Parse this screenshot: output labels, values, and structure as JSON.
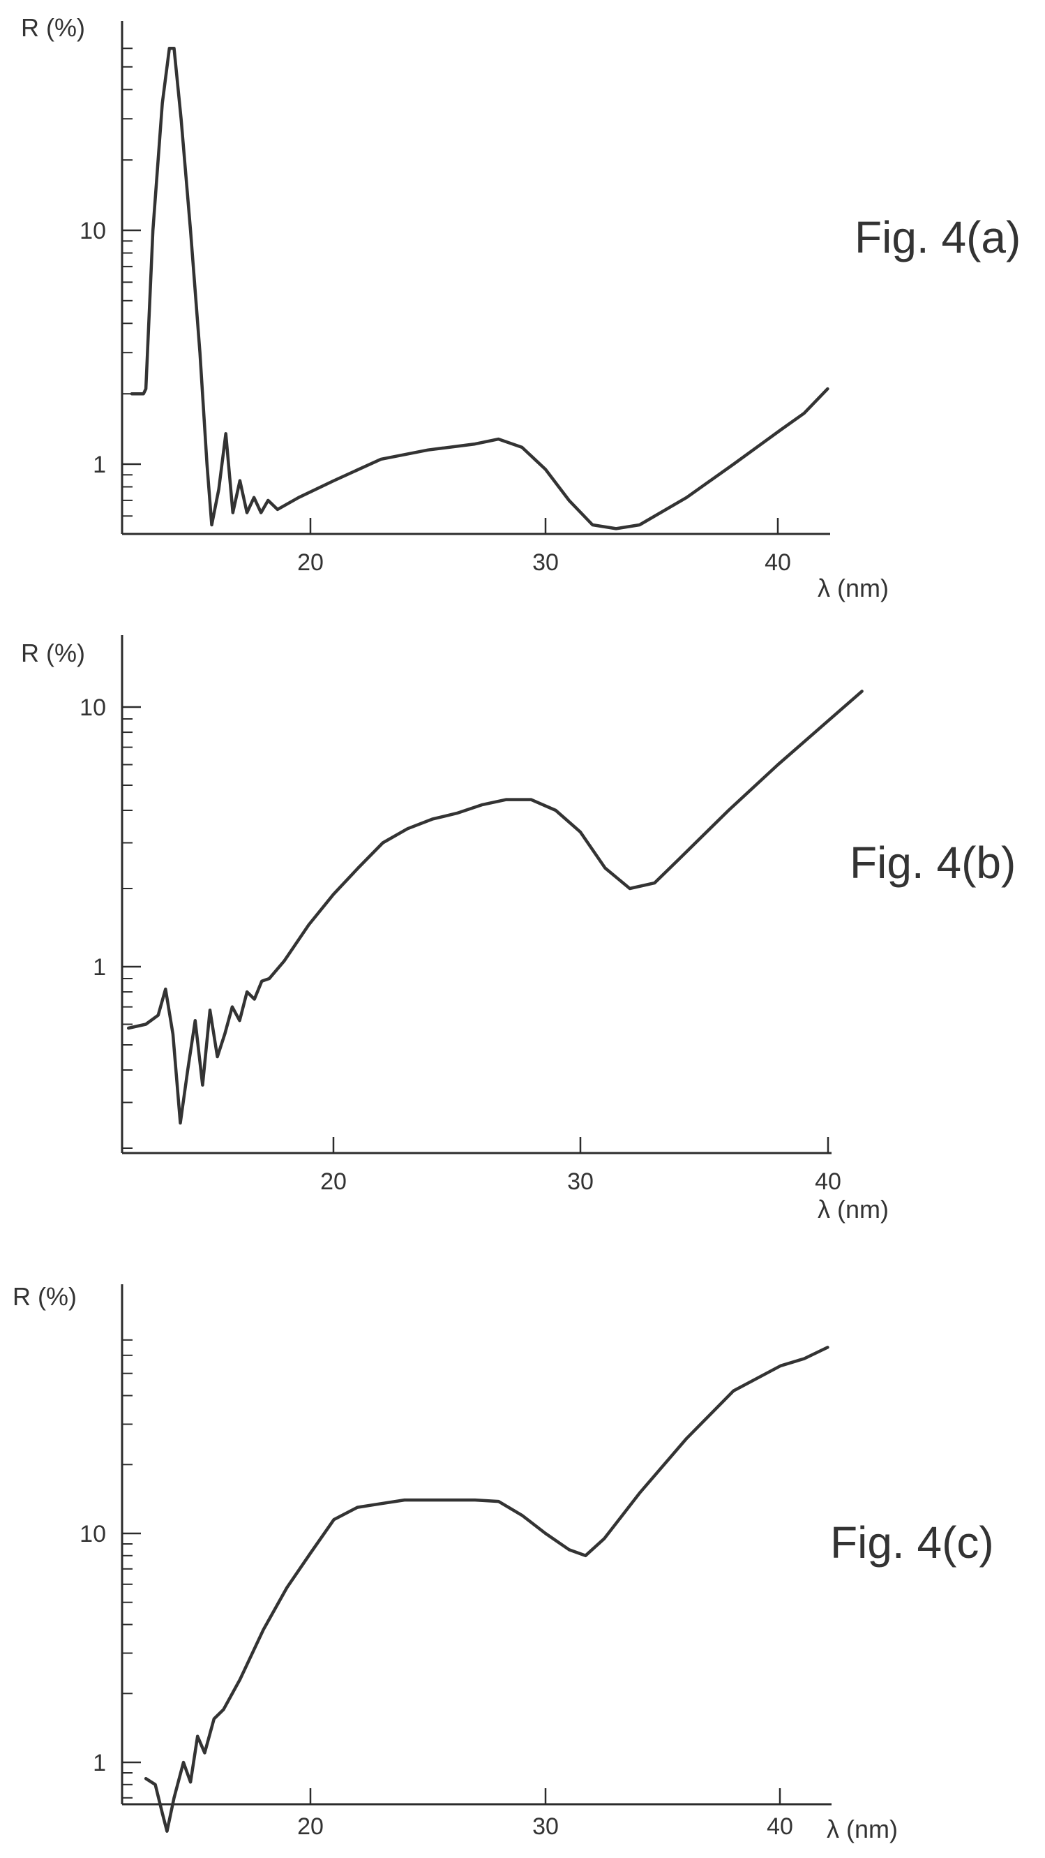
{
  "chart_data": [
    {
      "type": "line",
      "title": "Fig. 4(a)",
      "xlabel": "λ (nm)",
      "ylabel": "R (%)",
      "xlim": [
        12.3,
        42.5
      ],
      "ylim": [
        0.5,
        65
      ],
      "yscale": "log",
      "xticks": [
        20,
        30,
        40
      ],
      "yticks": [
        1,
        10
      ],
      "series": [
        {
          "values": [
            [
              12.4,
              2.0
            ],
            [
              12.9,
              2.0
            ],
            [
              13.0,
              2.1
            ],
            [
              13.3,
              10
            ],
            [
              13.7,
              35
            ],
            [
              14.0,
              60
            ],
            [
              14.2,
              60
            ],
            [
              14.5,
              30
            ],
            [
              14.9,
              10
            ],
            [
              15.3,
              3
            ],
            [
              15.6,
              1.0
            ],
            [
              15.8,
              0.55
            ],
            [
              16.1,
              0.78
            ],
            [
              16.4,
              1.35
            ],
            [
              16.7,
              0.62
            ],
            [
              17.0,
              0.85
            ],
            [
              17.3,
              0.62
            ],
            [
              17.6,
              0.72
            ],
            [
              17.9,
              0.62
            ],
            [
              18.2,
              0.7
            ],
            [
              18.6,
              0.64
            ],
            [
              19.5,
              0.72
            ],
            [
              21.0,
              0.85
            ],
            [
              23.0,
              1.05
            ],
            [
              25.0,
              1.15
            ],
            [
              27.0,
              1.22
            ],
            [
              28.0,
              1.28
            ],
            [
              29.0,
              1.18
            ],
            [
              30.0,
              0.95
            ],
            [
              31.0,
              0.7
            ],
            [
              32.0,
              0.55
            ],
            [
              33.0,
              0.53
            ],
            [
              34.0,
              0.55
            ],
            [
              36.0,
              0.72
            ],
            [
              38.0,
              1.0
            ],
            [
              40.0,
              1.4
            ],
            [
              41.0,
              1.65
            ],
            [
              42.0,
              2.1
            ]
          ]
        }
      ]
    },
    {
      "type": "line",
      "title": "Fig. 4(b)",
      "xlabel": "λ (nm)",
      "ylabel": "R (%)",
      "xlim": [
        11.5,
        41.5
      ],
      "ylim": [
        0.2,
        15
      ],
      "yscale": "log",
      "xticks": [
        20,
        30,
        40
      ],
      "yticks": [
        1,
        10
      ],
      "series": [
        {
          "values": [
            [
              11.7,
              0.58
            ],
            [
              12.4,
              0.6
            ],
            [
              12.9,
              0.65
            ],
            [
              13.2,
              0.82
            ],
            [
              13.5,
              0.55
            ],
            [
              13.8,
              0.25
            ],
            [
              14.1,
              0.4
            ],
            [
              14.4,
              0.62
            ],
            [
              14.7,
              0.35
            ],
            [
              15.0,
              0.68
            ],
            [
              15.3,
              0.45
            ],
            [
              15.6,
              0.55
            ],
            [
              15.9,
              0.7
            ],
            [
              16.2,
              0.62
            ],
            [
              16.5,
              0.8
            ],
            [
              16.8,
              0.75
            ],
            [
              17.1,
              0.88
            ],
            [
              17.4,
              0.9
            ],
            [
              18.0,
              1.05
            ],
            [
              19.0,
              1.45
            ],
            [
              20.0,
              1.9
            ],
            [
              21.0,
              2.4
            ],
            [
              22.0,
              3.0
            ],
            [
              23.0,
              3.4
            ],
            [
              24.0,
              3.7
            ],
            [
              25.0,
              3.9
            ],
            [
              26.0,
              4.2
            ],
            [
              27.0,
              4.4
            ],
            [
              28.0,
              4.4
            ],
            [
              29.0,
              4.0
            ],
            [
              30.0,
              3.3
            ],
            [
              31.0,
              2.4
            ],
            [
              32.0,
              2.0
            ],
            [
              33.0,
              2.1
            ],
            [
              34.0,
              2.6
            ],
            [
              36.0,
              4.0
            ],
            [
              38.0,
              6.0
            ],
            [
              40.0,
              8.8
            ],
            [
              41.4,
              11.5
            ]
          ]
        }
      ]
    },
    {
      "type": "line",
      "title": "Fig. 4(c)",
      "xlabel": "λ (nm)",
      "ylabel": "R (%)",
      "xlim": [
        12.2,
        42.3
      ],
      "ylim": [
        0.48,
        72
      ],
      "yscale": "log",
      "xticks": [
        20,
        30,
        40
      ],
      "yticks": [
        1,
        10
      ],
      "series": [
        {
          "values": [
            [
              13.0,
              0.85
            ],
            [
              13.4,
              0.8
            ],
            [
              13.7,
              0.6
            ],
            [
              13.9,
              0.5
            ],
            [
              14.2,
              0.7
            ],
            [
              14.6,
              1.0
            ],
            [
              14.9,
              0.82
            ],
            [
              15.2,
              1.3
            ],
            [
              15.5,
              1.1
            ],
            [
              15.9,
              1.55
            ],
            [
              16.3,
              1.7
            ],
            [
              17.0,
              2.3
            ],
            [
              18.0,
              3.8
            ],
            [
              19.0,
              5.8
            ],
            [
              20.0,
              8.2
            ],
            [
              21.0,
              11.5
            ],
            [
              22.0,
              13.0
            ],
            [
              23.0,
              13.5
            ],
            [
              24.0,
              14.0
            ],
            [
              25.0,
              14.0
            ],
            [
              26.0,
              14.0
            ],
            [
              27.0,
              14.0
            ],
            [
              28.0,
              13.8
            ],
            [
              29.0,
              12.0
            ],
            [
              30.0,
              10.0
            ],
            [
              31.0,
              8.5
            ],
            [
              31.7,
              8.0
            ],
            [
              32.5,
              9.5
            ],
            [
              34.0,
              15.0
            ],
            [
              36.0,
              26.0
            ],
            [
              38.0,
              42.0
            ],
            [
              40.0,
              54.0
            ],
            [
              41.0,
              58.0
            ],
            [
              42.0,
              65.0
            ]
          ]
        }
      ]
    }
  ]
}
